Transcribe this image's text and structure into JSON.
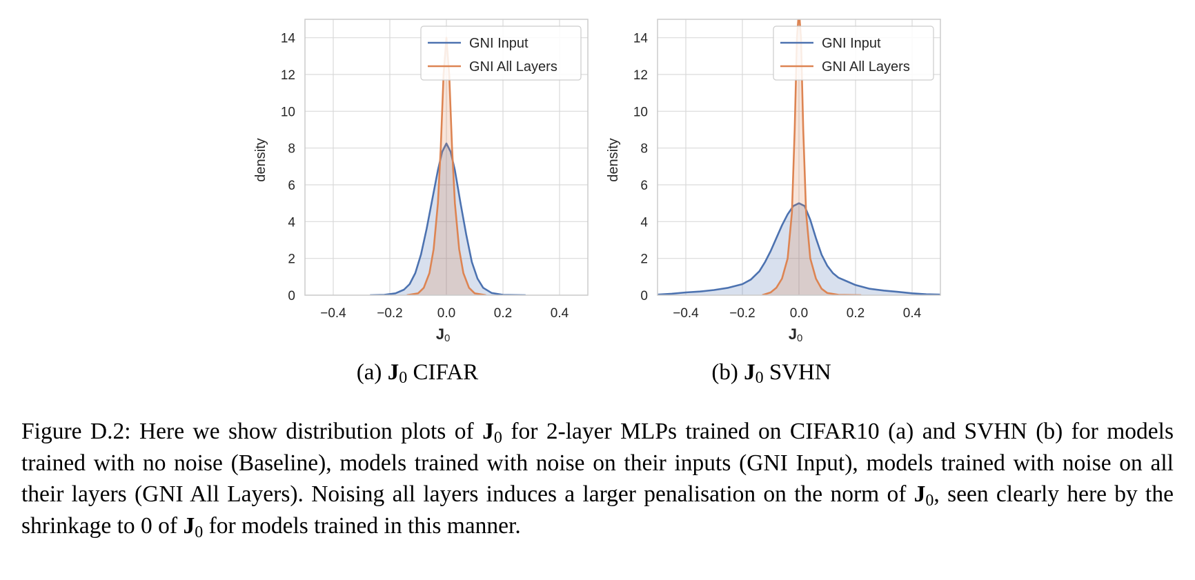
{
  "colors": {
    "gni_input": "#4c72b0",
    "gni_all_layers": "#dd8452",
    "grid": "#d9d9d9",
    "spine": "#cccccc"
  },
  "chart_data": [
    {
      "type": "area",
      "subcaption_prefix": "(a)",
      "subcaption_symbol": "J",
      "subcaption_symbol_sub": "0",
      "subcaption_suffix": "CIFAR",
      "xlabel": "J",
      "xlabel_sub": "0",
      "ylabel": "density",
      "xlim": [
        -0.5,
        0.5
      ],
      "ylim": [
        0,
        15
      ],
      "xticks": [
        -0.4,
        -0.2,
        0.0,
        0.2,
        0.4
      ],
      "xtick_labels": [
        "−0.4",
        "−0.2",
        "0.0",
        "0.2",
        "0.4"
      ],
      "yticks": [
        0,
        2,
        4,
        6,
        8,
        10,
        12,
        14
      ],
      "ytick_labels": [
        "0",
        "2",
        "4",
        "6",
        "8",
        "10",
        "12",
        "14"
      ],
      "grid": true,
      "legend_position": "top-right",
      "series": [
        {
          "name": "GNI Input",
          "color": "#4c72b0",
          "x": [
            -0.27,
            -0.22,
            -0.18,
            -0.15,
            -0.13,
            -0.11,
            -0.09,
            -0.07,
            -0.05,
            -0.03,
            -0.015,
            0.0,
            0.015,
            0.03,
            0.05,
            0.07,
            0.09,
            0.11,
            0.13,
            0.16,
            0.2,
            0.28
          ],
          "y": [
            0.0,
            0.02,
            0.1,
            0.3,
            0.6,
            1.2,
            2.2,
            3.6,
            5.2,
            6.8,
            7.8,
            8.25,
            7.8,
            6.8,
            5.0,
            3.3,
            1.8,
            0.9,
            0.4,
            0.12,
            0.02,
            0.0
          ]
        },
        {
          "name": "GNI All Layers",
          "color": "#dd8452",
          "x": [
            -0.14,
            -0.1,
            -0.08,
            -0.06,
            -0.045,
            -0.03,
            -0.02,
            -0.01,
            0.0,
            0.01,
            0.02,
            0.03,
            0.045,
            0.06,
            0.08,
            0.1,
            0.14
          ],
          "y": [
            0.0,
            0.1,
            0.4,
            1.2,
            2.5,
            5.0,
            8.0,
            12.0,
            14.0,
            12.0,
            8.0,
            5.0,
            2.5,
            1.2,
            0.4,
            0.1,
            0.0
          ]
        }
      ]
    },
    {
      "type": "area",
      "subcaption_prefix": "(b)",
      "subcaption_symbol": "J",
      "subcaption_symbol_sub": "0",
      "subcaption_suffix": "SVHN",
      "xlabel": "J",
      "xlabel_sub": "0",
      "ylabel": "density",
      "xlim": [
        -0.5,
        0.5
      ],
      "ylim": [
        0,
        15
      ],
      "xticks": [
        -0.4,
        -0.2,
        0.0,
        0.2,
        0.4
      ],
      "xtick_labels": [
        "−0.4",
        "−0.2",
        "0.0",
        "0.2",
        "0.4"
      ],
      "yticks": [
        0,
        2,
        4,
        6,
        8,
        10,
        12,
        14
      ],
      "ytick_labels": [
        "0",
        "2",
        "4",
        "6",
        "8",
        "10",
        "12",
        "14"
      ],
      "grid": true,
      "legend_position": "top-right",
      "series": [
        {
          "name": "GNI Input",
          "color": "#4c72b0",
          "x": [
            -0.5,
            -0.45,
            -0.4,
            -0.35,
            -0.3,
            -0.25,
            -0.2,
            -0.17,
            -0.14,
            -0.12,
            -0.1,
            -0.08,
            -0.06,
            -0.04,
            -0.02,
            0.0,
            0.02,
            0.04,
            0.06,
            0.08,
            0.1,
            0.12,
            0.14,
            0.17,
            0.2,
            0.25,
            0.3,
            0.35,
            0.4,
            0.45,
            0.5
          ],
          "y": [
            0.03,
            0.08,
            0.15,
            0.2,
            0.28,
            0.4,
            0.6,
            0.85,
            1.3,
            1.8,
            2.4,
            3.1,
            3.8,
            4.4,
            4.85,
            5.0,
            4.85,
            4.1,
            3.1,
            2.2,
            1.6,
            1.2,
            0.95,
            0.75,
            0.55,
            0.35,
            0.25,
            0.18,
            0.1,
            0.05,
            0.03
          ]
        },
        {
          "name": "GNI All Layers",
          "color": "#dd8452",
          "x": [
            -0.13,
            -0.1,
            -0.08,
            -0.06,
            -0.04,
            -0.025,
            -0.015,
            -0.007,
            0.0,
            0.007,
            0.015,
            0.025,
            0.04,
            0.06,
            0.08,
            0.1,
            0.14,
            0.22
          ],
          "y": [
            0.0,
            0.15,
            0.4,
            0.9,
            2.0,
            4.5,
            9.0,
            14.0,
            15.5,
            14.0,
            9.0,
            4.5,
            2.0,
            0.9,
            0.35,
            0.12,
            0.02,
            0.0
          ]
        }
      ]
    }
  ],
  "caption": {
    "line1_a": "Figure D.2: Here we show distribution plots of ",
    "line1_sym": "J",
    "line1_sub": "0",
    "line1_b": " for 2-layer MLPs trained on CIFAR10 (a) and",
    "line2": "SVHN (b) for models trained with no noise (Baseline), models trained with noise on their inputs",
    "line3": "(GNI Input), models trained with noise on all their layers (GNI All Layers).  Noising all layers",
    "line4_a": "induces a larger penalisation on the norm of ",
    "line4_sym1": "J",
    "line4_sub1": "0",
    "line4_b": ", seen clearly here by the shrinkage to 0 of ",
    "line4_sym2": "J",
    "line4_sub2": "0",
    "line4_c": " for",
    "line5": "models trained in this manner."
  }
}
